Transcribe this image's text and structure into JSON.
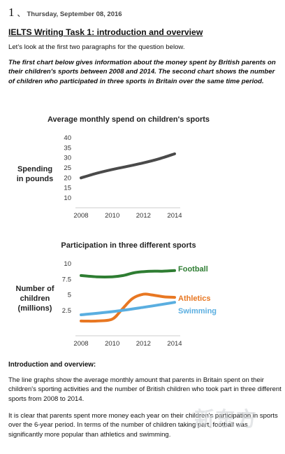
{
  "header": {
    "number": "1",
    "separator": "、",
    "date": "Thursday, September 08, 2016"
  },
  "title": "IELTS Writing Task 1: introduction and overview",
  "intro": "Let's look at the first two paragraphs for the question below.",
  "question": "The first chart below gives information about the money spent by British parents on their children's sports between 2008 and 2014. The second chart shows the number of children who participated in three sports in Britain over the same time period.",
  "chart_data": [
    {
      "type": "line",
      "title": "Average monthly spend on children's sports",
      "ylabel_lines": [
        "Spending",
        "in pounds"
      ],
      "x_ticks": [
        "2008",
        "2010",
        "2012",
        "2014"
      ],
      "y_ticks": [
        "40",
        "35",
        "30",
        "25",
        "20",
        "15",
        "10"
      ],
      "xlim": [
        2008,
        2014
      ],
      "ylim": [
        10,
        40
      ],
      "series": [
        {
          "color": "#4a4a4a",
          "x": [
            2008,
            2009,
            2010,
            2011,
            2012,
            2013,
            2014
          ],
          "y": [
            20,
            22.3,
            24.2,
            25.8,
            27.5,
            29.5,
            32
          ]
        }
      ]
    },
    {
      "type": "line",
      "title": "Participation in three different sports",
      "ylabel_lines": [
        "Number of",
        "children",
        "(millions)"
      ],
      "x_ticks": [
        "2008",
        "2010",
        "2012",
        "2014"
      ],
      "y_ticks": [
        "10",
        "7.5",
        "5",
        "2.5"
      ],
      "xlim": [
        2008,
        2014
      ],
      "ylim": [
        0,
        10
      ],
      "series": [
        {
          "name": "Football",
          "color": "#2e7d32",
          "x": [
            2008,
            2009,
            2010,
            2010.7,
            2011.5,
            2012.5,
            2013.2,
            2014
          ],
          "y": [
            8.1,
            7.9,
            7.9,
            8.1,
            8.6,
            8.8,
            8.8,
            8.9
          ]
        },
        {
          "name": "Athletics",
          "color": "#e87722",
          "x": [
            2008,
            2009,
            2010,
            2010.6,
            2011.3,
            2012,
            2012.5,
            2013.3,
            2014
          ],
          "y": [
            0.8,
            0.8,
            1.1,
            2.6,
            4.4,
            5.1,
            5.0,
            4.7,
            4.6
          ]
        },
        {
          "name": "Swimming",
          "color": "#5aaee0",
          "x": [
            2008,
            2010,
            2012,
            2014
          ],
          "y": [
            1.8,
            2.3,
            3.0,
            3.8
          ]
        }
      ]
    }
  ],
  "section_heading": "Introduction and overview:",
  "paragraphs": [
    "The line graphs show the average monthly amount that parents in Britain spent on their children's sporting activities and the number of British children who took part in three different sports from 2008 to 2014.",
    "It is clear that parents spent more money each year on their children's participation in sports over the 6-year period. In terms of the number of children taking part, football was significantly more popular than athletics and swimming."
  ],
  "watermark": "新东方"
}
